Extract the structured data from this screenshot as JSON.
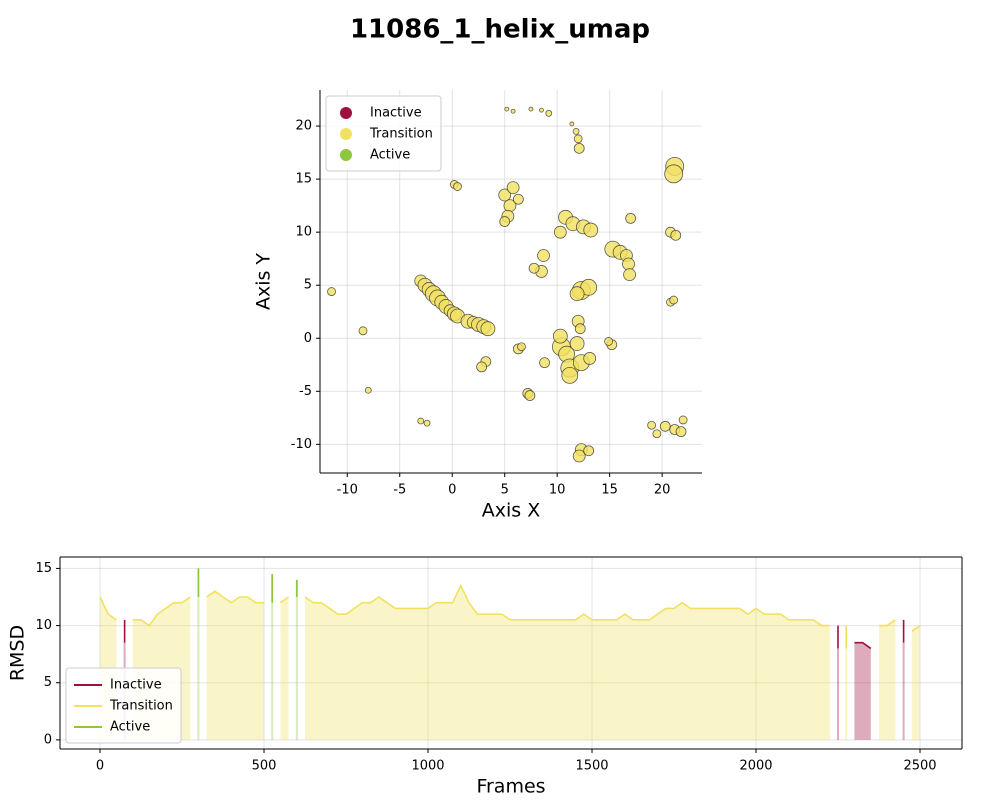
{
  "title": "11086_1_helix_umap",
  "chart_data": [
    {
      "type": "scatter",
      "xlabel": "Axis X",
      "ylabel": "Axis Y",
      "xlim": [
        -12.6,
        23.8
      ],
      "ylim": [
        -12.7,
        23.4
      ],
      "xticks": [
        -10,
        -5,
        0,
        5,
        10,
        15,
        20
      ],
      "yticks": [
        -10,
        -5,
        0,
        5,
        10,
        15,
        20
      ],
      "grid": true,
      "legend": "upper left",
      "spines": [
        "left",
        "bottom"
      ],
      "series": [
        {
          "name": "Inactive",
          "color": "#a10f41",
          "x": [],
          "y": [],
          "sizes": []
        },
        {
          "name": "Transition",
          "color": "#f2e160",
          "x": [
            -3,
            -2.6,
            -2.2,
            -1.8,
            -1.4,
            -1,
            -0.6,
            -0.2,
            0.2,
            0.5,
            1.5,
            2,
            2.5,
            3,
            3.4,
            -11.5,
            -8.5,
            -8,
            -3,
            -2.4,
            3.2,
            2.8,
            6.3,
            6.6,
            7.2,
            7.4,
            0.2,
            0.5,
            5,
            5.8,
            5.5,
            5.3,
            5,
            6.3,
            5.2,
            5.8,
            7.5,
            8.5,
            9.2,
            11.4,
            11.8,
            12,
            12.1,
            10.8,
            11.5,
            12.5,
            13.2,
            10.3,
            12.3,
            13,
            11.9,
            12,
            12.2,
            8.7,
            8.5,
            7.8,
            15.3,
            16,
            16.6,
            16.8,
            16.9,
            17,
            21.2,
            21.1,
            20.8,
            21.3,
            20.8,
            21.1,
            10.4,
            10.9,
            11.2,
            11.2,
            12.3,
            11.9,
            13.1,
            10.3,
            8.8,
            12.3,
            12.1,
            13,
            15.2,
            14.9,
            19,
            19.5,
            20.3,
            21.2,
            21.8,
            22
          ],
          "y": [
            5.4,
            5,
            4.6,
            4.2,
            3.8,
            3.4,
            3,
            2.6,
            2.3,
            2.1,
            1.6,
            1.5,
            1.3,
            1.1,
            0.9,
            4.4,
            0.7,
            -4.9,
            -7.8,
            -8,
            -2.2,
            -2.7,
            -1,
            -0.8,
            -5.2,
            -5.4,
            14.5,
            14.3,
            13.5,
            14.2,
            12.5,
            11.5,
            11,
            13.1,
            21.6,
            21.4,
            21.6,
            21.5,
            21.2,
            20.2,
            19.5,
            18.8,
            17.9,
            11.4,
            10.8,
            10.5,
            10.2,
            10,
            4.5,
            4.8,
            4.2,
            1.6,
            0.9,
            7.8,
            6.3,
            6.6,
            8.4,
            8.1,
            7.8,
            7,
            6,
            11.3,
            16.2,
            15.5,
            10,
            9.7,
            3.4,
            3.6,
            -0.8,
            -1.5,
            -2.8,
            -3.5,
            -2.3,
            -0.5,
            -1.9,
            0.2,
            -2.3,
            -10.5,
            -11.1,
            -10.6,
            -0.6,
            -0.3,
            -8.2,
            -9,
            -8.3,
            -8.6,
            -8.8,
            -7.7
          ],
          "sizes": [
            6,
            7,
            7,
            8,
            8,
            7,
            7,
            6,
            7,
            7,
            7,
            6,
            7,
            7,
            7,
            4,
            4,
            3,
            3,
            3,
            5,
            5,
            5,
            4,
            5,
            5,
            4,
            4,
            6,
            6,
            6,
            6,
            5,
            5,
            2,
            2,
            2,
            2,
            3,
            2,
            3,
            4,
            5,
            7,
            7,
            7,
            7,
            6,
            9,
            8,
            7,
            6,
            5,
            6,
            6,
            5,
            8,
            7,
            6,
            6,
            6,
            5,
            9,
            9,
            5,
            5,
            4,
            4,
            9,
            8,
            9,
            8,
            8,
            7,
            6,
            7,
            5,
            6,
            6,
            5,
            5,
            4,
            4,
            4,
            5,
            5,
            5,
            4
          ]
        },
        {
          "name": "Active",
          "color": "#8dc63f",
          "x": [],
          "y": [],
          "sizes": []
        }
      ]
    },
    {
      "type": "line",
      "xlabel": "Frames",
      "ylabel": "RMSD",
      "xlim": [
        -122,
        2628
      ],
      "ylim": [
        -0.8,
        16
      ],
      "xticks": [
        0,
        500,
        1000,
        1500,
        2000,
        2500
      ],
      "yticks": [
        0,
        5,
        10,
        15
      ],
      "grid": true,
      "legend": "lower left",
      "fill": true,
      "spines": [
        "left",
        "bottom",
        "top",
        "right"
      ],
      "x": [
        0,
        25,
        50,
        75,
        100,
        125,
        150,
        175,
        200,
        225,
        250,
        275,
        300,
        325,
        350,
        375,
        400,
        425,
        450,
        475,
        500,
        525,
        550,
        575,
        600,
        625,
        650,
        675,
        700,
        725,
        750,
        775,
        800,
        825,
        850,
        875,
        900,
        925,
        950,
        975,
        1000,
        1025,
        1050,
        1075,
        1100,
        1125,
        1150,
        1175,
        1200,
        1225,
        1250,
        1275,
        1300,
        1325,
        1350,
        1375,
        1400,
        1425,
        1450,
        1475,
        1500,
        1525,
        1550,
        1575,
        1600,
        1625,
        1650,
        1675,
        1700,
        1725,
        1750,
        1775,
        1800,
        1825,
        1850,
        1875,
        1900,
        1925,
        1950,
        1975,
        2000,
        2025,
        2050,
        2075,
        2100,
        2125,
        2150,
        2175,
        2200,
        2225,
        2250,
        2275,
        2300,
        2325,
        2350,
        2375,
        2400,
        2425,
        2450,
        2475,
        2500
      ],
      "series": [
        {
          "name": "Inactive",
          "color": "#a10f41",
          "values": [
            null,
            null,
            null,
            8.5,
            null,
            null,
            null,
            null,
            null,
            null,
            null,
            null,
            null,
            null,
            null,
            null,
            null,
            null,
            null,
            null,
            null,
            null,
            null,
            null,
            null,
            null,
            null,
            null,
            null,
            null,
            null,
            null,
            null,
            null,
            null,
            null,
            null,
            null,
            null,
            null,
            null,
            null,
            null,
            null,
            null,
            null,
            null,
            null,
            null,
            null,
            null,
            null,
            null,
            null,
            null,
            null,
            null,
            null,
            null,
            null,
            null,
            null,
            null,
            null,
            null,
            null,
            null,
            null,
            null,
            null,
            null,
            null,
            null,
            null,
            null,
            null,
            null,
            null,
            null,
            null,
            null,
            null,
            null,
            null,
            null,
            null,
            null,
            null,
            null,
            null,
            8,
            null,
            8.5,
            8.5,
            8,
            null,
            null,
            null,
            8.5,
            null,
            null
          ]
        },
        {
          "name": "Transition",
          "color": "#f2e160",
          "values": [
            12.5,
            11,
            10.5,
            null,
            10.5,
            10.5,
            10,
            11,
            11.5,
            12,
            12,
            12.5,
            null,
            12.5,
            13,
            12.5,
            12,
            12.5,
            12.5,
            12,
            12,
            null,
            12,
            12.5,
            null,
            12.5,
            12,
            12,
            11.5,
            11,
            11,
            11.5,
            12,
            12,
            12.5,
            12,
            11.5,
            11.5,
            11.5,
            11.5,
            11.5,
            12,
            12,
            12,
            13.5,
            12,
            11,
            11,
            11,
            11,
            10.5,
            10.5,
            10.5,
            10.5,
            10.5,
            10.5,
            10.5,
            10.5,
            10.5,
            11,
            10.5,
            10.5,
            10.5,
            10.5,
            11,
            10.5,
            10.5,
            10.5,
            11,
            11.5,
            11.5,
            12,
            11.5,
            11.5,
            11.5,
            11.5,
            11.5,
            11.5,
            11.5,
            11,
            11.5,
            11,
            11,
            11,
            10.5,
            10.5,
            10.5,
            10.5,
            10,
            10,
            null,
            10,
            null,
            null,
            null,
            10,
            10,
            10.5,
            null,
            9.5,
            10
          ]
        },
        {
          "name": "Active",
          "color": "#8dc63f",
          "values": [
            null,
            null,
            null,
            null,
            null,
            null,
            null,
            null,
            null,
            null,
            null,
            null,
            15,
            null,
            null,
            null,
            null,
            null,
            null,
            null,
            null,
            14.5,
            null,
            null,
            14,
            null,
            null,
            null,
            null,
            null,
            null,
            null,
            null,
            null,
            null,
            null,
            null,
            null,
            null,
            null,
            null,
            null,
            null,
            null,
            null,
            null,
            null,
            null,
            null,
            null,
            null,
            null,
            null,
            null,
            null,
            null,
            null,
            null,
            null,
            null,
            null,
            null,
            null,
            null,
            null,
            null,
            null,
            null,
            null,
            null,
            null,
            null,
            null,
            null,
            null,
            null,
            null,
            null,
            null,
            null,
            null,
            null,
            null,
            null,
            null,
            null,
            null,
            null,
            null,
            null,
            null,
            null,
            null,
            null,
            null,
            null,
            null,
            null,
            null,
            null,
            null
          ]
        }
      ]
    }
  ]
}
